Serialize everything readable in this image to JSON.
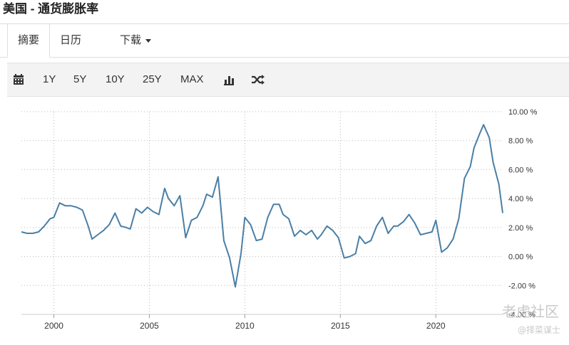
{
  "page": {
    "title": "美国 - 通货膨胀率"
  },
  "tabs": [
    {
      "label": "摘要",
      "active": true
    },
    {
      "label": "日历",
      "active": false
    },
    {
      "label": "下载",
      "active": false
    }
  ],
  "toolbar": {
    "calendar_icon": "calendar-icon",
    "ranges": [
      "1Y",
      "5Y",
      "10Y",
      "25Y",
      "MAX"
    ],
    "bar_icon": "bar-chart-icon",
    "shuffle_icon": "shuffle-icon"
  },
  "watermark": {
    "line1": "老虎社区",
    "line2": "@择菜谋士"
  },
  "chart_data": {
    "type": "line",
    "title": "",
    "xlabel": "",
    "ylabel": "",
    "xlim": [
      1998.3,
      2023.5
    ],
    "ylim": [
      -4,
      10
    ],
    "grid": true,
    "color": "#4a7fa6",
    "x_ticks": [
      2000,
      2005,
      2010,
      2015,
      2020
    ],
    "x_tick_labels": [
      "2000",
      "2005",
      "2010",
      "2015",
      "2020"
    ],
    "y_ticks": [
      10,
      8,
      6,
      4,
      2,
      0,
      -2,
      -4
    ],
    "y_tick_labels": [
      "10.00 %",
      "8.00 %",
      "6.00 %",
      "4.00 %",
      "2.00 %",
      "0.00 %",
      "-2.00 %",
      "-4.00 %"
    ],
    "series": [
      {
        "x": [
          1998.3,
          1998.6,
          1998.9,
          1999.2,
          1999.5,
          1999.8,
          2000.0,
          2000.3,
          2000.6,
          2000.9,
          2001.2,
          2001.5,
          2001.8,
          2002.0,
          2002.3,
          2002.6,
          2002.9,
          2003.2,
          2003.5,
          2003.8,
          2004.0,
          2004.3,
          2004.6,
          2004.9,
          2005.2,
          2005.5,
          2005.8,
          2006.0,
          2006.3,
          2006.6,
          2006.9,
          2007.2,
          2007.5,
          2007.8,
          2008.0,
          2008.3,
          2008.6,
          2008.9,
          2009.2,
          2009.5,
          2009.8,
          2010.0,
          2010.3,
          2010.6,
          2010.9,
          2011.2,
          2011.5,
          2011.8,
          2012.0,
          2012.3,
          2012.6,
          2012.9,
          2013.2,
          2013.5,
          2013.8,
          2014.0,
          2014.3,
          2014.6,
          2014.9,
          2015.2,
          2015.5,
          2015.8,
          2016.0,
          2016.3,
          2016.6,
          2016.9,
          2017.2,
          2017.5,
          2017.8,
          2018.0,
          2018.3,
          2018.6,
          2018.9,
          2019.2,
          2019.5,
          2019.8,
          2020.0,
          2020.3,
          2020.6,
          2020.9,
          2021.2,
          2021.5,
          2021.8,
          2022.0,
          2022.3,
          2022.5,
          2022.8,
          2023.0,
          2023.3,
          2023.5
        ],
        "y": [
          1.7,
          1.6,
          1.6,
          1.7,
          2.1,
          2.6,
          2.7,
          3.7,
          3.5,
          3.5,
          3.4,
          3.2,
          2.1,
          1.2,
          1.5,
          1.8,
          2.2,
          3.0,
          2.1,
          2.0,
          1.9,
          3.3,
          3.0,
          3.4,
          3.1,
          2.9,
          4.7,
          4.0,
          3.5,
          4.2,
          1.3,
          2.5,
          2.7,
          3.5,
          4.3,
          4.1,
          5.5,
          1.1,
          -0.1,
          -2.1,
          0.2,
          2.7,
          2.2,
          1.1,
          1.2,
          2.7,
          3.6,
          3.6,
          2.9,
          2.6,
          1.4,
          1.8,
          1.5,
          1.8,
          1.2,
          1.5,
          2.1,
          1.8,
          1.3,
          -0.1,
          0.0,
          0.2,
          1.4,
          0.9,
          1.1,
          2.1,
          2.7,
          1.6,
          2.1,
          2.1,
          2.4,
          2.9,
          2.3,
          1.5,
          1.6,
          1.7,
          2.5,
          0.3,
          0.6,
          1.2,
          2.6,
          5.4,
          6.2,
          7.5,
          8.5,
          9.1,
          8.2,
          6.5,
          5.0,
          3.0
        ]
      }
    ]
  }
}
